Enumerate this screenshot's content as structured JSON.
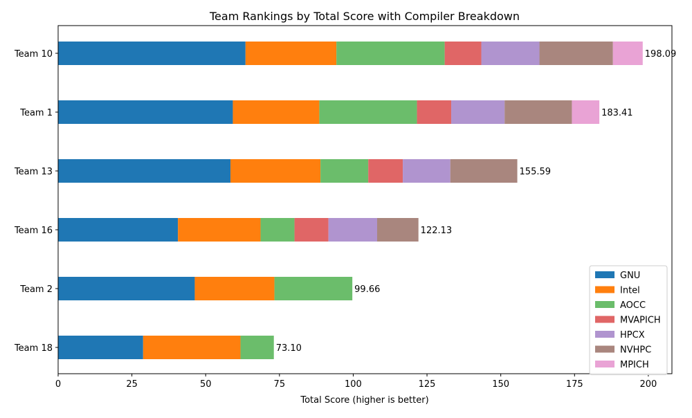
{
  "chart_data": {
    "type": "bar",
    "orientation": "horizontal",
    "stacked": true,
    "title": "Team Rankings by Total Score with Compiler Breakdown",
    "xlabel": "Total Score (higher is better)",
    "ylabel": "",
    "xlim": [
      0,
      208
    ],
    "xticks": [
      0,
      25,
      50,
      75,
      100,
      125,
      150,
      175,
      200
    ],
    "grid": false,
    "legend_position": "lower-right",
    "categories": [
      "Team 10",
      "Team 1",
      "Team 13",
      "Team 16",
      "Team 2",
      "Team 18"
    ],
    "totals": [
      "198.09",
      "183.41",
      "155.59",
      "122.13",
      "99.66",
      "73.10"
    ],
    "series": [
      {
        "name": "GNU",
        "color": "#1f77b4",
        "values": [
          63.5,
          59.2,
          58.4,
          40.6,
          46.3,
          28.8
        ]
      },
      {
        "name": "Intel",
        "color": "#ff7f0e",
        "values": [
          30.8,
          29.3,
          30.5,
          28.0,
          27.0,
          33.0
        ]
      },
      {
        "name": "AOCC",
        "color": "#6bbd6b",
        "values": [
          36.7,
          33.1,
          16.2,
          11.5,
          26.4,
          11.3
        ]
      },
      {
        "name": "MVAPICH",
        "color": "#e06666",
        "values": [
          12.4,
          11.6,
          11.7,
          11.5,
          0,
          0
        ]
      },
      {
        "name": "HPCX",
        "color": "#b094cf",
        "values": [
          19.7,
          18.1,
          16.1,
          16.5,
          0,
          0
        ]
      },
      {
        "name": "NVHPC",
        "color": "#a9867e",
        "values": [
          24.9,
          22.8,
          22.7,
          14.0,
          0,
          0
        ]
      },
      {
        "name": "MPICH",
        "color": "#e9a3d5",
        "values": [
          10.1,
          9.3,
          0,
          0,
          0,
          0
        ]
      }
    ]
  }
}
